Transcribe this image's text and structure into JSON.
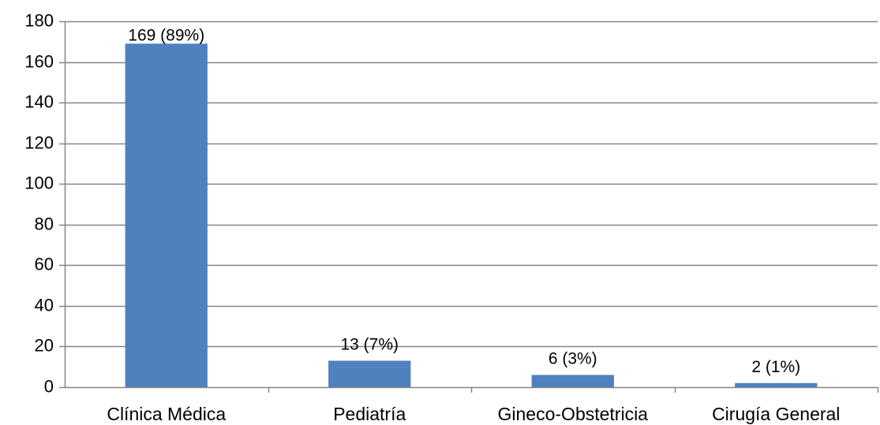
{
  "chart_data": {
    "type": "bar",
    "title": "",
    "xlabel": "",
    "ylabel": "",
    "categories": [
      "Clínica Médica",
      "Pediatría",
      "Gineco-Obstetricia",
      "Cirugía General"
    ],
    "values": [
      169,
      13,
      6,
      2
    ],
    "data_labels": [
      "169 (89%)",
      "13 (7%)",
      "6 (3%)",
      "2 (1%)"
    ],
    "ylim": [
      0,
      180
    ],
    "yticks": [
      0,
      20,
      40,
      60,
      80,
      100,
      120,
      140,
      160,
      180
    ],
    "ytick_labels": [
      "0",
      "20",
      "40",
      "60",
      "80",
      "100",
      "120",
      "140",
      "160",
      "180"
    ],
    "grid": true,
    "legend": "none",
    "bar_color": "#4F81BD",
    "grid_color": "#868686"
  }
}
